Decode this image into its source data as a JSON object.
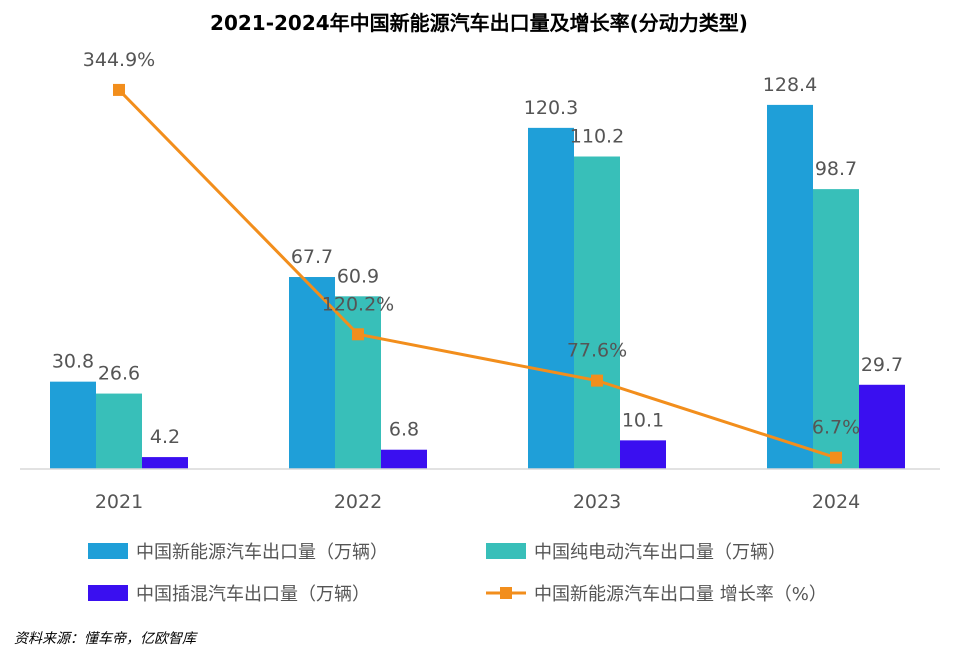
{
  "chart_data": {
    "type": "bar",
    "title": "2021-2024年中国新能源汽车出口量及增长率(分动力类型)",
    "categories": [
      "2021",
      "2022",
      "2023",
      "2024"
    ],
    "series": [
      {
        "name": "中国新能源汽车出口量（万辆）",
        "values": [
          30.8,
          67.7,
          120.3,
          128.4
        ],
        "color": "#1f9fd8",
        "kind": "bar"
      },
      {
        "name": "中国纯电动汽车出口量（万辆）",
        "values": [
          26.6,
          60.9,
          110.2,
          98.7
        ],
        "color": "#38bfb9",
        "kind": "bar"
      },
      {
        "name": "中国插混汽车出口量（万辆）",
        "values": [
          4.2,
          6.8,
          10.1,
          29.7
        ],
        "color": "#3a0ff0",
        "kind": "bar"
      }
    ],
    "line_series": {
      "name": "中国新能源汽车出口量 增长率（%）",
      "values": [
        344.9,
        120.2,
        77.6,
        6.7
      ],
      "labels": [
        "344.9%",
        "120.2%",
        "77.6%",
        "6.7%"
      ],
      "color": "#f28e1c",
      "ylim": [
        0,
        400
      ]
    },
    "value_labels": [
      [
        "30.8",
        "26.6",
        "4.2"
      ],
      [
        "67.7",
        "60.9",
        "6.8"
      ],
      [
        "120.3",
        "110.2",
        "10.1"
      ],
      [
        "128.4",
        "98.7",
        "29.7"
      ]
    ],
    "ylim": [
      0,
      140
    ],
    "xlabel": "",
    "ylabel": "",
    "grid": false,
    "legend_position": "bottom"
  },
  "source": "资料来源：懂车帝，亿欧智库"
}
